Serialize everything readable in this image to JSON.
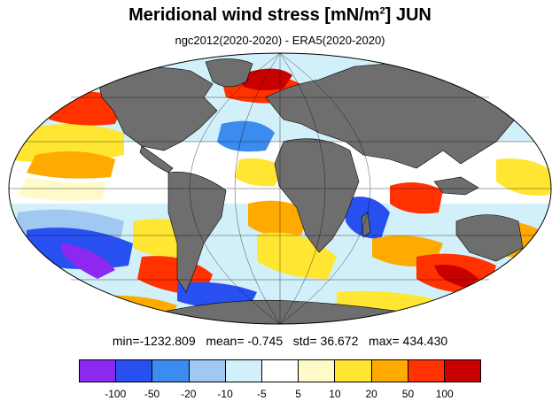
{
  "title": {
    "main": "Meridional wind stress [mN/m",
    "sup": "2",
    "tail": "] JUN"
  },
  "subtitle": "ngc2012(2020-2020) - ERA5(2020-2020)",
  "stats": {
    "min_label": "min=",
    "min": "-1232.809",
    "mean_label": "mean=",
    "mean": "-0.745",
    "std_label": "std=",
    "std": "36.672",
    "max_label": "max=",
    "max": "434.430"
  },
  "colorbar": {
    "colors": [
      "#8c28f0",
      "#2850f0",
      "#3c8cf0",
      "#a0c8f0",
      "#d2f0fa",
      "#ffffff",
      "#fffac8",
      "#ffe632",
      "#ffaa00",
      "#ff3200",
      "#c80000"
    ],
    "labels": [
      "-100",
      "-50",
      "-20",
      "-10",
      "-5",
      "5",
      "10",
      "20",
      "50",
      "100"
    ]
  },
  "map": {
    "projection": "Mollweide",
    "land_color": "#6e6e6e",
    "grid": true
  }
}
